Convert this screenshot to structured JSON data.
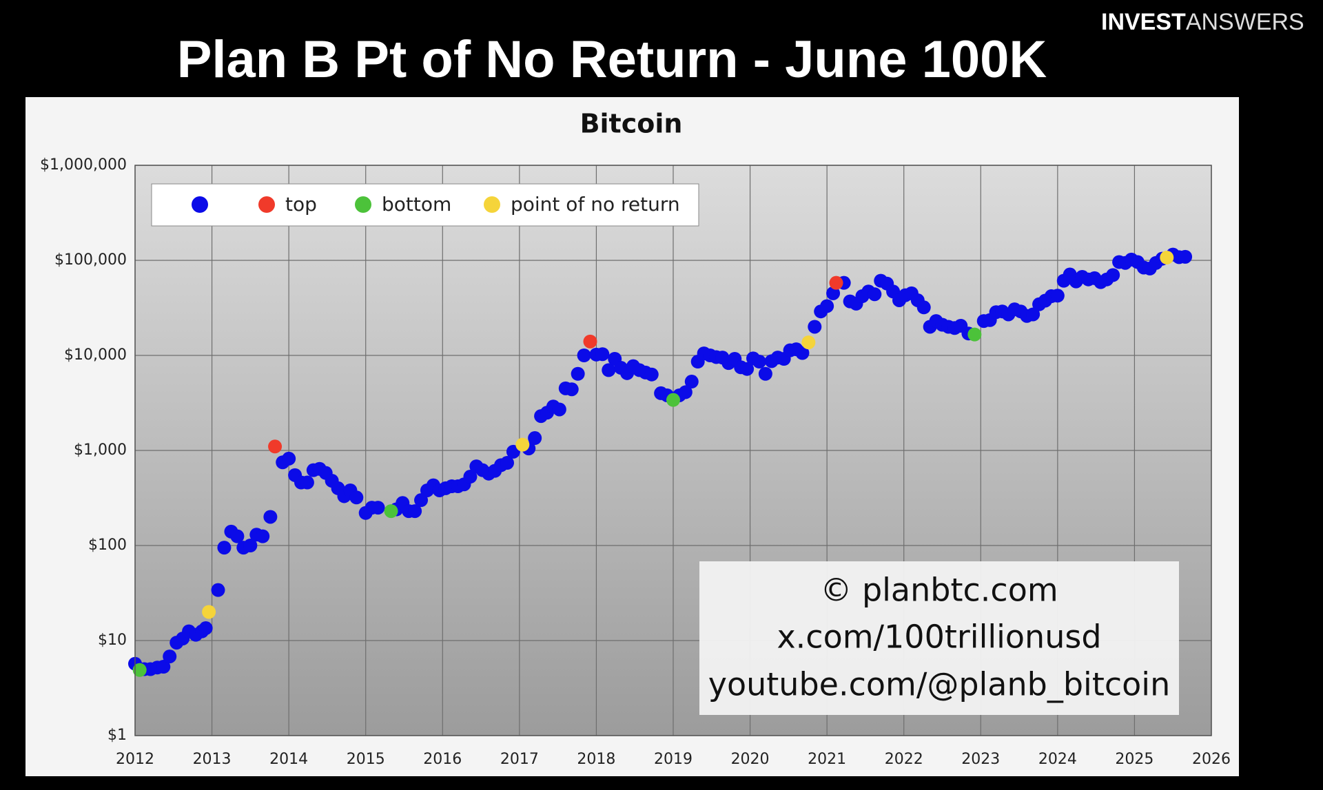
{
  "header": {
    "title": "Plan B Pt of No Return - June 100K",
    "brand": [
      "INVEST",
      "ANSWERS"
    ]
  },
  "watermark": [
    "© planbtc.com",
    "x.com/100trillionusd",
    "youtube.com/@planb_bitcoin"
  ],
  "chart_data": {
    "type": "scatter",
    "title": "Bitcoin",
    "log_y": true,
    "grid": true,
    "legend": "upper left",
    "xlim": [
      2012,
      2026
    ],
    "xticks": [
      2012,
      2013,
      2014,
      2015,
      2016,
      2017,
      2018,
      2019,
      2020,
      2021,
      2022,
      2023,
      2024,
      2025,
      2026
    ],
    "ylim": [
      1,
      1000000
    ],
    "yticks": [
      {
        "value": 1,
        "label": "$1"
      },
      {
        "value": 10,
        "label": "$10"
      },
      {
        "value": 100,
        "label": "$100"
      },
      {
        "value": 1000,
        "label": "$1,000"
      },
      {
        "value": 10000,
        "label": "$10,000"
      },
      {
        "value": 100000,
        "label": "$100,000"
      },
      {
        "value": 1000000,
        "label": "$1,000,000"
      }
    ],
    "series": [
      {
        "color": "#0b0be8",
        "x": [
          2012.0,
          2012.12,
          2012.2,
          2012.29,
          2012.37,
          2012.45,
          2012.54,
          2012.62,
          2012.7,
          2012.79,
          2012.87,
          2012.92,
          2013.08,
          2013.16,
          2013.25,
          2013.33,
          2013.41,
          2013.5,
          2013.58,
          2013.66,
          2013.76,
          2013.92,
          2014.0,
          2014.08,
          2014.16,
          2014.24,
          2014.32,
          2014.4,
          2014.48,
          2014.56,
          2014.64,
          2014.72,
          2014.8,
          2014.88,
          2015.0,
          2015.08,
          2015.16,
          2015.4,
          2015.48,
          2015.56,
          2015.64,
          2015.72,
          2015.8,
          2015.88,
          2015.96,
          2016.04,
          2016.12,
          2016.2,
          2016.28,
          2016.36,
          2016.44,
          2016.52,
          2016.6,
          2016.68,
          2016.76,
          2016.84,
          2016.92,
          2017.12,
          2017.2,
          2017.28,
          2017.36,
          2017.44,
          2017.52,
          2017.6,
          2017.68,
          2017.76,
          2017.84,
          2018.0,
          2018.08,
          2018.16,
          2018.24,
          2018.32,
          2018.4,
          2018.48,
          2018.56,
          2018.64,
          2018.72,
          2018.84,
          2018.92,
          2019.08,
          2019.16,
          2019.24,
          2019.32,
          2019.4,
          2019.48,
          2019.56,
          2019.64,
          2019.72,
          2019.8,
          2019.88,
          2019.96,
          2020.04,
          2020.12,
          2020.2,
          2020.28,
          2020.36,
          2020.44,
          2020.52,
          2020.6,
          2020.68,
          2020.84,
          2020.92,
          2021.0,
          2021.08,
          2021.22,
          2021.3,
          2021.38,
          2021.46,
          2021.54,
          2021.62,
          2021.7,
          2021.78,
          2021.86,
          2021.94,
          2022.02,
          2022.1,
          2022.18,
          2022.26,
          2022.34,
          2022.42,
          2022.5,
          2022.58,
          2022.66,
          2022.74,
          2022.84,
          2023.04,
          2023.12,
          2023.2,
          2023.28,
          2023.36,
          2023.44,
          2023.52,
          2023.6,
          2023.68,
          2023.76,
          2023.84,
          2023.92,
          2024.0,
          2024.08,
          2024.16,
          2024.24,
          2024.32,
          2024.4,
          2024.48,
          2024.56,
          2024.64,
          2024.72,
          2024.8,
          2024.88,
          2024.96,
          2025.04,
          2025.12,
          2025.2,
          2025.28,
          2025.36,
          2025.5,
          2025.58,
          2025.66
        ],
        "values": [
          5.7,
          5.0,
          5.0,
          5.2,
          5.3,
          6.8,
          9.5,
          10.5,
          12.5,
          11.5,
          12.5,
          13.5,
          34,
          95,
          140,
          125,
          95,
          100,
          130,
          125,
          200,
          750,
          820,
          550,
          460,
          460,
          620,
          640,
          580,
          480,
          400,
          330,
          380,
          320,
          220,
          250,
          250,
          240,
          280,
          230,
          230,
          300,
          380,
          430,
          380,
          400,
          420,
          420,
          440,
          530,
          680,
          620,
          570,
          610,
          700,
          740,
          970,
          1050,
          1350,
          2300,
          2500,
          2900,
          2700,
          4500,
          4400,
          6400,
          10000,
          10200,
          10300,
          7000,
          9200,
          7400,
          6500,
          7700,
          7000,
          6600,
          6300,
          4000,
          3800,
          3800,
          4100,
          5300,
          8600,
          10500,
          10000,
          9600,
          9500,
          8300,
          9200,
          7500,
          7200,
          9300,
          8600,
          6400,
          8700,
          9500,
          9200,
          11300,
          11600,
          10600,
          20000,
          29000,
          33000,
          45000,
          58000,
          37000,
          35000,
          42000,
          47000,
          44000,
          61000,
          57000,
          47000,
          38000,
          43000,
          45000,
          38000,
          32000,
          20000,
          23000,
          21000,
          20000,
          19400,
          20500,
          17000,
          23000,
          23500,
          28500,
          29000,
          27000,
          30500,
          29000,
          26000,
          27000,
          34500,
          37700,
          42000,
          42500,
          61000,
          71000,
          60000,
          67000,
          63000,
          65000,
          59000,
          63000,
          70000,
          96000,
          94000,
          102000,
          96000,
          84000,
          82000,
          94000,
          104000,
          115000,
          108000,
          109000
        ]
      },
      {
        "name": "top",
        "color": "#f03a2a",
        "x": [
          2013.82,
          2017.92,
          2021.12
        ],
        "values": [
          1100,
          14000,
          58000
        ]
      },
      {
        "name": "bottom",
        "color": "#4cc23a",
        "x": [
          2012.06,
          2015.33,
          2019.0,
          2022.92
        ],
        "values": [
          4.9,
          230,
          3400,
          16600
        ]
      },
      {
        "name": "point of no return",
        "color": "#f5d43a",
        "x": [
          2012.96,
          2017.04,
          2020.76,
          2025.42
        ],
        "values": [
          20,
          1150,
          13700,
          107000
        ]
      }
    ]
  }
}
